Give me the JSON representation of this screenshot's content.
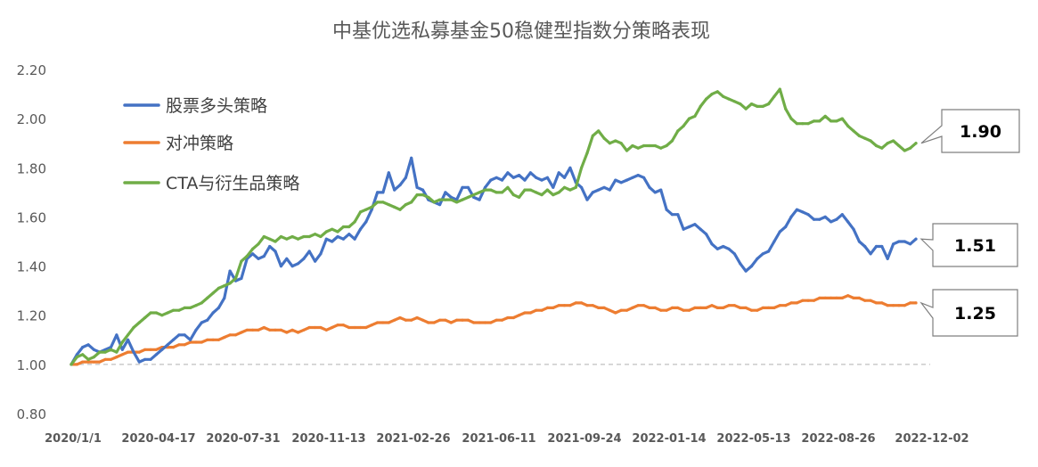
{
  "chart_data": {
    "type": "line",
    "title": "中基优选私募基金50稳健型指数分策略表现",
    "xlabel": "",
    "ylabel": "",
    "ylim": [
      0.8,
      2.2
    ],
    "yticks": [
      "0.80",
      "1.00",
      "1.20",
      "1.40",
      "1.60",
      "1.80",
      "2.00",
      "2.20"
    ],
    "xtick_labels": [
      "2020/1/1",
      "2020-04-17",
      "2020-07-31",
      "2020-11-13",
      "2021-02-26",
      "2021-06-11",
      "2021-09-24",
      "2022-01-14",
      "2022-05-13",
      "2022-08-26",
      "2022-12-02"
    ],
    "grid": false,
    "baseline": 1.0,
    "legend_position": "top-left",
    "series": [
      {
        "name": "股票多头策略",
        "color": "#4472C4",
        "values": [
          1.0,
          1.04,
          1.07,
          1.08,
          1.06,
          1.05,
          1.06,
          1.07,
          1.12,
          1.06,
          1.1,
          1.05,
          1.01,
          1.02,
          1.02,
          1.04,
          1.06,
          1.08,
          1.1,
          1.12,
          1.12,
          1.1,
          1.14,
          1.17,
          1.18,
          1.21,
          1.23,
          1.27,
          1.38,
          1.34,
          1.35,
          1.43,
          1.45,
          1.43,
          1.44,
          1.48,
          1.46,
          1.4,
          1.43,
          1.4,
          1.41,
          1.43,
          1.46,
          1.42,
          1.45,
          1.51,
          1.5,
          1.52,
          1.51,
          1.53,
          1.51,
          1.55,
          1.58,
          1.63,
          1.7,
          1.7,
          1.78,
          1.71,
          1.73,
          1.76,
          1.84,
          1.72,
          1.71,
          1.67,
          1.66,
          1.65,
          1.7,
          1.68,
          1.67,
          1.72,
          1.72,
          1.68,
          1.67,
          1.72,
          1.75,
          1.76,
          1.75,
          1.78,
          1.76,
          1.77,
          1.75,
          1.78,
          1.76,
          1.75,
          1.76,
          1.72,
          1.78,
          1.76,
          1.8,
          1.74,
          1.72,
          1.67,
          1.7,
          1.71,
          1.72,
          1.71,
          1.75,
          1.74,
          1.75,
          1.76,
          1.77,
          1.76,
          1.72,
          1.7,
          1.71,
          1.63,
          1.61,
          1.61,
          1.55,
          1.56,
          1.57,
          1.55,
          1.53,
          1.49,
          1.47,
          1.48,
          1.47,
          1.45,
          1.41,
          1.38,
          1.4,
          1.43,
          1.45,
          1.46,
          1.5,
          1.54,
          1.56,
          1.6,
          1.63,
          1.62,
          1.61,
          1.59,
          1.59,
          1.6,
          1.58,
          1.59,
          1.61,
          1.58,
          1.55,
          1.5,
          1.48,
          1.45,
          1.48,
          1.48,
          1.43,
          1.49,
          1.5,
          1.5,
          1.49,
          1.51
        ]
      },
      {
        "name": "对冲策略",
        "color": "#ED7D31",
        "values": [
          1.0,
          1.0,
          1.01,
          1.01,
          1.01,
          1.01,
          1.02,
          1.02,
          1.03,
          1.04,
          1.05,
          1.05,
          1.05,
          1.06,
          1.06,
          1.06,
          1.07,
          1.07,
          1.07,
          1.08,
          1.08,
          1.09,
          1.09,
          1.09,
          1.1,
          1.1,
          1.1,
          1.11,
          1.12,
          1.12,
          1.13,
          1.14,
          1.14,
          1.14,
          1.15,
          1.14,
          1.14,
          1.14,
          1.13,
          1.14,
          1.13,
          1.14,
          1.15,
          1.15,
          1.15,
          1.14,
          1.15,
          1.16,
          1.16,
          1.15,
          1.15,
          1.15,
          1.15,
          1.16,
          1.17,
          1.17,
          1.17,
          1.18,
          1.19,
          1.18,
          1.18,
          1.19,
          1.18,
          1.17,
          1.17,
          1.18,
          1.18,
          1.17,
          1.18,
          1.18,
          1.18,
          1.17,
          1.17,
          1.17,
          1.17,
          1.18,
          1.18,
          1.19,
          1.19,
          1.2,
          1.21,
          1.21,
          1.22,
          1.22,
          1.23,
          1.23,
          1.24,
          1.24,
          1.24,
          1.25,
          1.25,
          1.24,
          1.24,
          1.23,
          1.23,
          1.22,
          1.21,
          1.22,
          1.22,
          1.23,
          1.24,
          1.24,
          1.23,
          1.23,
          1.22,
          1.22,
          1.23,
          1.23,
          1.22,
          1.22,
          1.23,
          1.23,
          1.23,
          1.24,
          1.23,
          1.23,
          1.24,
          1.24,
          1.23,
          1.23,
          1.22,
          1.22,
          1.23,
          1.23,
          1.23,
          1.24,
          1.24,
          1.25,
          1.25,
          1.26,
          1.26,
          1.26,
          1.27,
          1.27,
          1.27,
          1.27,
          1.27,
          1.28,
          1.27,
          1.27,
          1.26,
          1.26,
          1.25,
          1.25,
          1.24,
          1.24,
          1.24,
          1.24,
          1.25,
          1.25
        ]
      },
      {
        "name": "CTA与衍生品策略",
        "color": "#70AD47",
        "values": [
          1.0,
          1.03,
          1.04,
          1.02,
          1.03,
          1.05,
          1.05,
          1.06,
          1.05,
          1.09,
          1.12,
          1.15,
          1.17,
          1.19,
          1.21,
          1.21,
          1.2,
          1.21,
          1.22,
          1.22,
          1.23,
          1.23,
          1.24,
          1.25,
          1.27,
          1.29,
          1.31,
          1.32,
          1.33,
          1.35,
          1.42,
          1.44,
          1.47,
          1.49,
          1.52,
          1.51,
          1.5,
          1.52,
          1.51,
          1.52,
          1.51,
          1.52,
          1.52,
          1.53,
          1.52,
          1.54,
          1.55,
          1.54,
          1.56,
          1.56,
          1.58,
          1.62,
          1.63,
          1.64,
          1.66,
          1.66,
          1.65,
          1.64,
          1.63,
          1.65,
          1.66,
          1.69,
          1.69,
          1.68,
          1.66,
          1.67,
          1.67,
          1.67,
          1.66,
          1.67,
          1.68,
          1.69,
          1.7,
          1.71,
          1.71,
          1.7,
          1.7,
          1.72,
          1.69,
          1.68,
          1.71,
          1.71,
          1.7,
          1.69,
          1.71,
          1.69,
          1.7,
          1.72,
          1.71,
          1.72,
          1.8,
          1.86,
          1.93,
          1.95,
          1.92,
          1.9,
          1.91,
          1.9,
          1.87,
          1.89,
          1.88,
          1.89,
          1.89,
          1.89,
          1.88,
          1.89,
          1.91,
          1.95,
          1.97,
          2.0,
          2.01,
          2.05,
          2.08,
          2.1,
          2.11,
          2.09,
          2.08,
          2.07,
          2.06,
          2.04,
          2.06,
          2.05,
          2.05,
          2.06,
          2.09,
          2.12,
          2.04,
          2.0,
          1.98,
          1.98,
          1.98,
          1.99,
          1.99,
          2.01,
          1.99,
          1.99,
          2.0,
          1.97,
          1.95,
          1.93,
          1.92,
          1.91,
          1.89,
          1.88,
          1.9,
          1.91,
          1.89,
          1.87,
          1.88,
          1.9
        ]
      }
    ],
    "callouts": [
      {
        "label": "1.90",
        "series": "CTA与衍生品策略"
      },
      {
        "label": "1.51",
        "series": "股票多头策略"
      },
      {
        "label": "1.25",
        "series": "对冲策略"
      }
    ]
  }
}
